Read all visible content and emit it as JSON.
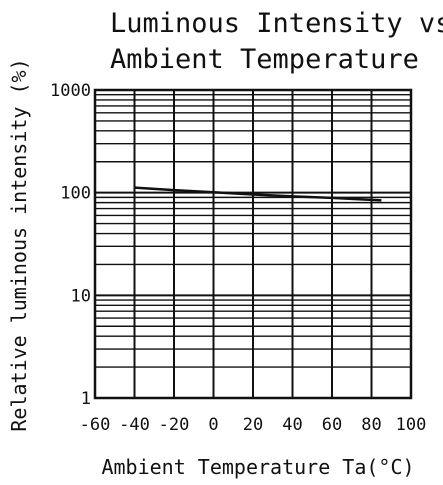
{
  "chart_data": {
    "type": "line",
    "title_lines": [
      "Luminous Intensity vs.",
      "Ambient Temperature"
    ],
    "xlabel": "Ambient Temperature Ta(°C)",
    "ylabel": "Relative luminous intensity (%)",
    "xlim": [
      -60,
      100
    ],
    "ylim": [
      1,
      1000
    ],
    "yscale": "log",
    "grid": true,
    "x_ticks": [
      -60,
      -40,
      -20,
      0,
      20,
      40,
      60,
      80,
      100
    ],
    "x_tick_labels": [
      "-60",
      "-40",
      "-20",
      "0",
      "20",
      "40",
      "60",
      "80",
      "100"
    ],
    "y_ticks": [
      1,
      10,
      100,
      1000
    ],
    "y_tick_labels": [
      "1",
      "10",
      "100",
      "1000"
    ],
    "series": [
      {
        "x": [
          -40,
          -20,
          0,
          20,
          40,
          60,
          85
        ],
        "y": [
          112,
          106,
          101,
          96,
          92,
          89,
          84
        ]
      }
    ]
  }
}
